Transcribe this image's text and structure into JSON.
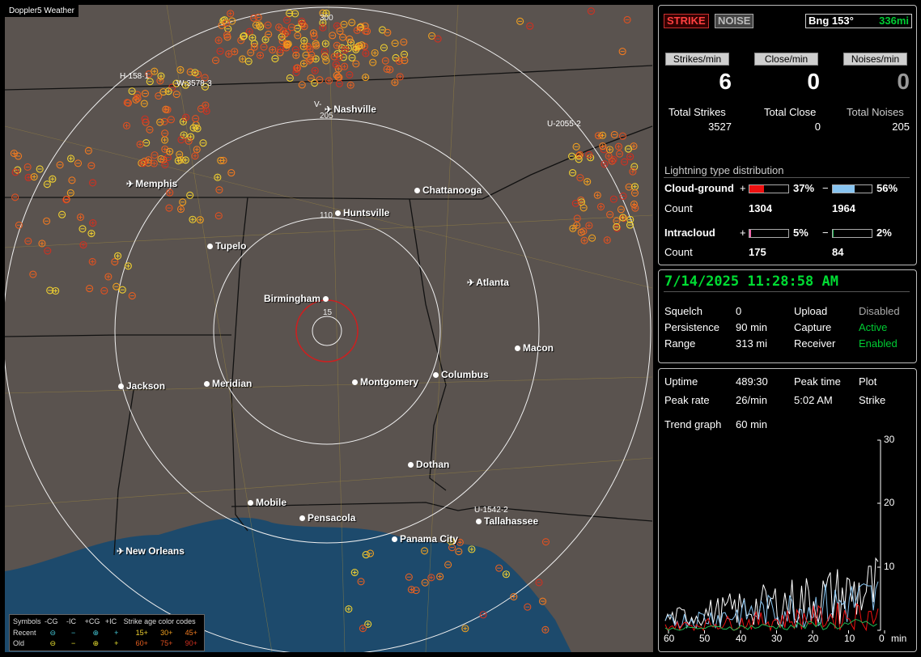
{
  "app_title": "Doppler5 Weather",
  "header": {
    "strike_btn": "STRIKE",
    "noise_btn": "NOISE",
    "bearing_label": "Bng 153°",
    "bearing_distance": "336mi",
    "strike_color": "#d02020",
    "accent": "#00cc33"
  },
  "counters": {
    "strikes_per_min_label": "Strikes/min",
    "close_per_min_label": "Close/min",
    "noises_per_min_label": "Noises/min",
    "strikes_per_min": "6",
    "close_per_min": "0",
    "noises_per_min": "0",
    "total_strikes_label": "Total Strikes",
    "total_close_label": "Total Close",
    "total_noises_label": "Total Noises",
    "total_strikes": "3527",
    "total_close": "0",
    "total_noises": "205"
  },
  "distribution": {
    "title": "Lightning type distribution",
    "cg_label": "Cloud-ground",
    "count_label": "Count",
    "ic_label": "Intracloud",
    "plus": "+",
    "minus": "−",
    "cg_pos_pct": "37%",
    "cg_neg_pct": "56%",
    "cg_pos_count": "1304",
    "cg_neg_count": "1964",
    "ic_pos_pct": "5%",
    "ic_neg_pct": "2%",
    "ic_pos_count": "175",
    "ic_neg_count": "84",
    "cg_pos_frac": 0.37,
    "cg_neg_frac": 0.56,
    "ic_pos_frac": 0.05,
    "ic_neg_frac": 0.02,
    "cg_pos_color": "#ee1111",
    "cg_neg_color": "#88c4f0",
    "ic_pos_color": "#ee66aa",
    "ic_neg_color": "#22bb55"
  },
  "status": {
    "datetime": "7/14/2025 11:28:58 AM",
    "squelch_label": "Squelch",
    "squelch": "0",
    "persistence_label": "Persistence",
    "persistence": "90 min",
    "range_label": "Range",
    "range": "313 mi",
    "upload_label": "Upload",
    "upload": "Disabled",
    "capture_label": "Capture",
    "capture": "Active",
    "receiver_label": "Receiver",
    "receiver": "Enabled"
  },
  "trend": {
    "uptime_label": "Uptime",
    "uptime": "489:30",
    "peak_time_label": "Peak time",
    "peak_time": "5:02 AM",
    "plot_label": "Plot",
    "plot": "Strike",
    "peak_rate_label": "Peak rate",
    "peak_rate": "26/min",
    "graph_label": "Trend graph",
    "graph_window": "60 min",
    "y_ticks": [
      "30",
      "20",
      "10"
    ],
    "x_ticks": [
      "60",
      "50",
      "40",
      "30",
      "20",
      "10",
      "0"
    ],
    "x_unit": "min"
  },
  "map": {
    "cities": [
      {
        "name": "Nashville",
        "plane": true
      },
      {
        "name": "Memphis",
        "plane": true
      },
      {
        "name": "Chattanooga"
      },
      {
        "name": "Huntsville"
      },
      {
        "name": "Tupelo"
      },
      {
        "name": "Atlanta",
        "plane": true
      },
      {
        "name": "Birmingham"
      },
      {
        "name": "Macon"
      },
      {
        "name": "Jackson"
      },
      {
        "name": "Meridian"
      },
      {
        "name": "Montgomery"
      },
      {
        "name": "Columbus"
      },
      {
        "name": "Dothan"
      },
      {
        "name": "Mobile"
      },
      {
        "name": "Pensacola"
      },
      {
        "name": "Tallahassee"
      },
      {
        "name": "Panama City"
      },
      {
        "name": "New Orleans",
        "plane": true
      }
    ],
    "ring_labels": [
      "300",
      "205",
      "110",
      "15"
    ],
    "storm_labels": [
      "H-158·1",
      "W-3578·3",
      "V-",
      "U-2055·2",
      "U-1542·2"
    ]
  },
  "legend": {
    "symbols_label": "Symbols",
    "cols": [
      "-CG",
      "-IC",
      "+CG",
      "+IC"
    ],
    "age_label": "Strike age color codes",
    "recent_label": "Recent",
    "old_label": "Old",
    "recent_ages": [
      "15+",
      "30+",
      "45+"
    ],
    "old_ages": [
      "60+",
      "75+",
      "90+"
    ],
    "minus_sym": "⊖",
    "dash_sym": "−",
    "plus_sym": "⊕",
    "cross_sym": "+",
    "recent_color": "#44c8d8",
    "old_color": "#e8e030",
    "age_colors": [
      "#f0d030",
      "#f0a020",
      "#f07a20",
      "#e86020",
      "#e05020",
      "#d03020"
    ]
  }
}
